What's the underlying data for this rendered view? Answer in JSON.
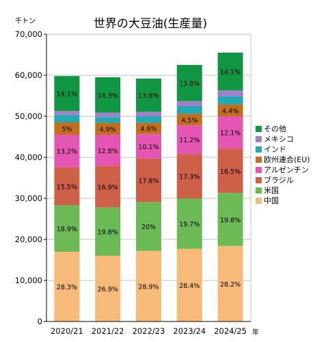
{
  "chart_data": {
    "type": "bar",
    "stacked": true,
    "title": "世界の大豆油(生産量)",
    "yunit": "千トン",
    "xunit": "年",
    "ylim": [
      0,
      70000
    ],
    "yticks": [
      0,
      10000,
      20000,
      30000,
      40000,
      50000,
      60000,
      70000
    ],
    "ytick_labels": [
      "0",
      "10,000",
      "20,000",
      "30,000",
      "40,000",
      "50,000",
      "60,000",
      "70,000"
    ],
    "categories": [
      "2020/21",
      "2021/22",
      "2022/23",
      "2023/24",
      "2024/25"
    ],
    "legend_position": "right",
    "series": [
      {
        "name": "中国",
        "color": "#F8BA78",
        "values": [
          17000,
          16000,
          17200,
          17700,
          18400
        ],
        "labels": [
          "28.3%",
          "26.9%",
          "28.9%",
          "28.4%",
          "28.2%"
        ]
      },
      {
        "name": "米国",
        "color": "#6BBA55",
        "values": [
          11300,
          11800,
          11900,
          12300,
          12900
        ],
        "labels": [
          "18.9%",
          "19.8%",
          "20%",
          "19.7%",
          "19.8%"
        ]
      },
      {
        "name": "ブラジル",
        "color": "#CF6048",
        "values": [
          9300,
          10100,
          10600,
          10800,
          10800
        ],
        "labels": [
          "15.5%",
          "16.9%",
          "17.8%",
          "17.3%",
          "16.5%"
        ]
      },
      {
        "name": "アルゼンチン",
        "color": "#E555B4",
        "values": [
          7900,
          7600,
          6000,
          7000,
          7900
        ],
        "labels": [
          "13.2%",
          "12.8%",
          "10.1%",
          "11.2%",
          "12.1%"
        ]
      },
      {
        "name": "欧州連合(EU)",
        "color": "#C26E1C",
        "values": [
          3000,
          2900,
          2700,
          2800,
          2900
        ],
        "labels": [
          "5%",
          "4.9%",
          "4.6%",
          "4.5%",
          "4.4%"
        ]
      },
      {
        "name": "インド",
        "color": "#21AAB4",
        "values": [
          1800,
          1400,
          1600,
          1900,
          2000
        ],
        "labels": [
          "",
          "",
          "",
          "",
          ""
        ]
      },
      {
        "name": "メキシコ",
        "color": "#A17FC9",
        "values": [
          1000,
          1100,
          1100,
          1200,
          1400
        ],
        "labels": [
          "",
          "",
          "",
          "",
          ""
        ]
      },
      {
        "name": "その他",
        "color": "#119744",
        "values": [
          8500,
          8600,
          8100,
          8800,
          9200
        ],
        "labels": [
          "14.1%",
          "14.3%",
          "13.6%",
          "13.8%",
          "14.1%"
        ]
      }
    ]
  }
}
